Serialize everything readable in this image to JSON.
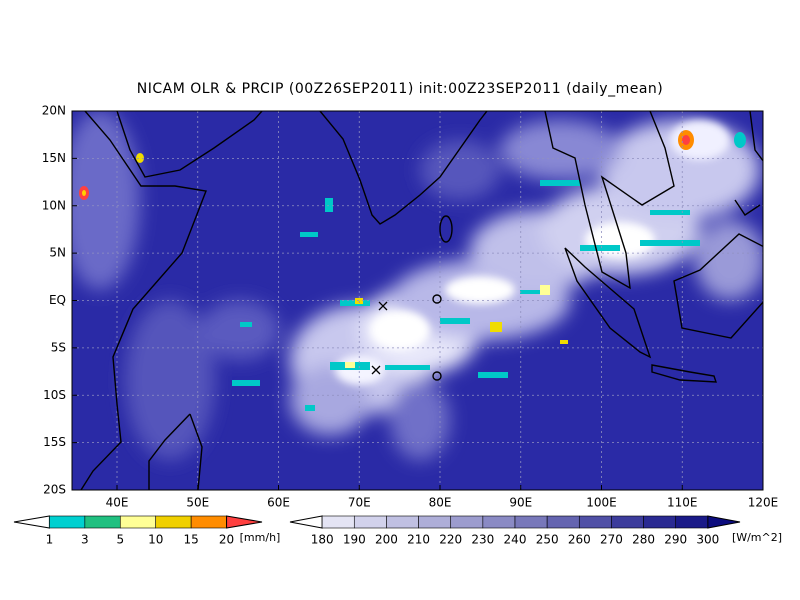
{
  "title": "NICAM OLR & PRCIP (00Z26SEP2011) init:00Z23SEP2011 (daily_mean)",
  "lon_labels": [
    "40E",
    "50E",
    "60E",
    "70E",
    "80E",
    "90E",
    "100E",
    "110E",
    "120E"
  ],
  "lat_labels": [
    "20N",
    "15N",
    "10N",
    "5N",
    "EQ",
    "5S",
    "10S",
    "15S",
    "20S"
  ],
  "precip_legend": {
    "labels": [
      "1",
      "3",
      "5",
      "10",
      "15",
      "20"
    ],
    "unit": "[mm/h]",
    "colors": [
      "#ffffff",
      "#00d0d0",
      "#20c080",
      "#ffff96",
      "#f0d000",
      "#ff8c00",
      "#ff4040"
    ]
  },
  "olr_legend": {
    "labels": [
      "180",
      "190",
      "200",
      "210",
      "220",
      "230",
      "240",
      "250",
      "260",
      "270",
      "280",
      "290",
      "300"
    ],
    "unit": "[W/m^2]",
    "colors": [
      "#ffffff",
      "#e4e4f4",
      "#d2d2ec",
      "#c0c0e2",
      "#aeaed8",
      "#9c9cce",
      "#8a8ac4",
      "#7878ba",
      "#6464b0",
      "#5050a6",
      "#3c3c9c",
      "#2a2a92",
      "#1a1a88",
      "#0c0c7e"
    ]
  }
}
